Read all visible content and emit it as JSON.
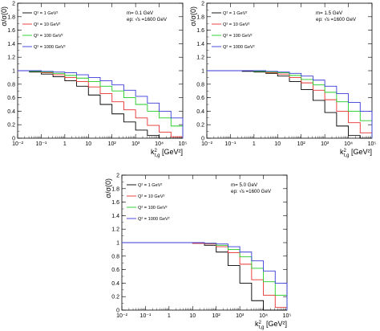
{
  "chart_data": [
    {
      "type": "line",
      "step": true,
      "title": "",
      "ylabel": "σ/σ(0)",
      "xlabel": "k²_{t,g} [GeV²]",
      "xscale": "log",
      "xlim": [
        0.01,
        100000
      ],
      "ylim": [
        0,
        2
      ],
      "x_ticklabels": [
        "10⁻²",
        "10⁻¹",
        "1",
        "10",
        "10²",
        "10³",
        "10⁴",
        "10⁵"
      ],
      "y_ticklabels": [
        "0",
        "0.2",
        "0.4",
        "0.6",
        "0.8",
        "1",
        "1.2",
        "1.4",
        "1.6",
        "1.8",
        "2"
      ],
      "info": {
        "mass": "m=  0.1 GeV",
        "ep": "ep:  √s =1600 GeV"
      },
      "legend_position": "top-left",
      "bin_edges_log10": [
        -2,
        -1.5,
        -1,
        -0.5,
        0,
        0.5,
        1,
        1.5,
        2,
        2.5,
        3,
        3.5,
        4,
        4.5,
        5
      ],
      "series": [
        {
          "name": "Q² = 1 GeV²",
          "color": "#000000",
          "values": [
            1.0,
            0.98,
            0.95,
            0.91,
            0.85,
            0.77,
            0.64,
            0.5,
            0.36,
            0.24,
            0.12,
            0.04,
            0.0,
            0.0
          ]
        },
        {
          "name": "Q² = 10 GeV²",
          "color": "#e8302f",
          "values": [
            1.0,
            0.99,
            0.97,
            0.94,
            0.9,
            0.84,
            0.76,
            0.66,
            0.54,
            0.42,
            0.3,
            0.19,
            0.09,
            0.02
          ]
        },
        {
          "name": "Q² = 100 GeV²",
          "color": "#22cc22",
          "values": [
            1.0,
            0.99,
            0.98,
            0.96,
            0.93,
            0.89,
            0.84,
            0.77,
            0.7,
            0.6,
            0.5,
            0.4,
            0.3,
            0.18
          ]
        },
        {
          "name": "Q² = 1000 GeV²",
          "color": "#3a3ad8",
          "values": [
            1.0,
            1.0,
            0.99,
            0.98,
            0.97,
            0.94,
            0.9,
            0.85,
            0.79,
            0.71,
            0.62,
            0.52,
            0.4,
            0.3
          ]
        }
      ]
    },
    {
      "type": "line",
      "step": true,
      "title": "",
      "ylabel": "σ/σ(0)",
      "xlabel": "k²_{t,g} [GeV²]",
      "xscale": "log",
      "xlim": [
        0.01,
        100000
      ],
      "ylim": [
        0,
        2
      ],
      "x_ticklabels": [
        "10⁻²",
        "10⁻¹",
        "1",
        "10",
        "10²",
        "10³",
        "10⁴",
        "10⁵"
      ],
      "y_ticklabels": [
        "0",
        "0.2",
        "0.4",
        "0.6",
        "0.8",
        "1",
        "1.2",
        "1.4",
        "1.6",
        "1.8",
        "2"
      ],
      "info": {
        "mass": "m=  1.5 GeV",
        "ep": "ep:  √s =1600 GeV"
      },
      "legend_position": "top-left",
      "bin_edges_log10": [
        -2,
        -1.5,
        -1,
        -0.5,
        0,
        0.5,
        1,
        1.5,
        2,
        2.5,
        3,
        3.5,
        4,
        4.5,
        5
      ],
      "series": [
        {
          "name": "Q² = 1 GeV²",
          "color": "#000000",
          "values": [
            1.0,
            1.0,
            1.0,
            0.99,
            0.98,
            0.96,
            0.92,
            0.84,
            0.72,
            0.56,
            0.38,
            0.18,
            0.04,
            0.0
          ]
        },
        {
          "name": "Q² = 10 GeV²",
          "color": "#e8302f",
          "values": [
            1.0,
            1.0,
            1.0,
            1.0,
            0.99,
            0.97,
            0.95,
            0.9,
            0.82,
            0.71,
            0.57,
            0.4,
            0.23,
            0.08
          ]
        },
        {
          "name": "Q² = 100 GeV²",
          "color": "#22cc22",
          "values": [
            1.0,
            1.0,
            1.0,
            1.0,
            0.99,
            0.98,
            0.97,
            0.93,
            0.87,
            0.79,
            0.68,
            0.54,
            0.4,
            0.26
          ]
        },
        {
          "name": "Q² = 1000 GeV²",
          "color": "#3a3ad8",
          "values": [
            1.0,
            1.0,
            1.0,
            1.0,
            1.0,
            0.99,
            0.98,
            0.96,
            0.92,
            0.86,
            0.77,
            0.66,
            0.53,
            0.4
          ]
        }
      ]
    },
    {
      "type": "line",
      "step": true,
      "title": "",
      "ylabel": "σ/σ(0)",
      "xlabel": "k²_{t,g} [GeV²]",
      "xscale": "log",
      "xlim": [
        0.01,
        100000
      ],
      "ylim": [
        0,
        2
      ],
      "x_ticklabels": [
        "10⁻²",
        "10⁻¹",
        "1",
        "10",
        "10²",
        "10³",
        "10⁴",
        "10⁵"
      ],
      "y_ticklabels": [
        "0",
        "0.2",
        "0.4",
        "0.6",
        "0.8",
        "1",
        "1.2",
        "1.4",
        "1.6",
        "1.8",
        "2"
      ],
      "info": {
        "mass": "m=  5.0 GeV",
        "ep": "ep:  √s =1600 GeV"
      },
      "legend_position": "top-left",
      "bin_edges_log10": [
        -2,
        -1.5,
        -1,
        -0.5,
        0,
        0.5,
        1,
        1.5,
        2,
        2.5,
        3,
        3.5,
        4,
        4.5,
        5
      ],
      "series": [
        {
          "name": "Q² = 1 GeV²",
          "color": "#000000",
          "values": [
            1.0,
            1.0,
            1.0,
            1.0,
            1.0,
            1.0,
            0.99,
            0.96,
            0.86,
            0.66,
            0.4,
            0.14,
            0.0,
            0.0
          ]
        },
        {
          "name": "Q² = 10 GeV²",
          "color": "#e8302f",
          "values": [
            1.0,
            1.0,
            1.0,
            1.0,
            1.0,
            1.0,
            0.99,
            0.98,
            0.94,
            0.85,
            0.68,
            0.45,
            0.22,
            0.04
          ]
        },
        {
          "name": "Q² = 100 GeV²",
          "color": "#22cc22",
          "values": [
            1.0,
            1.0,
            1.0,
            1.0,
            1.0,
            1.0,
            1.0,
            0.99,
            0.96,
            0.9,
            0.79,
            0.62,
            0.42,
            0.22
          ]
        },
        {
          "name": "Q² = 1000 GeV²",
          "color": "#3a3ad8",
          "values": [
            1.0,
            1.0,
            1.0,
            1.0,
            1.0,
            1.0,
            1.0,
            0.99,
            0.98,
            0.94,
            0.86,
            0.73,
            0.58,
            0.4
          ]
        }
      ]
    }
  ]
}
